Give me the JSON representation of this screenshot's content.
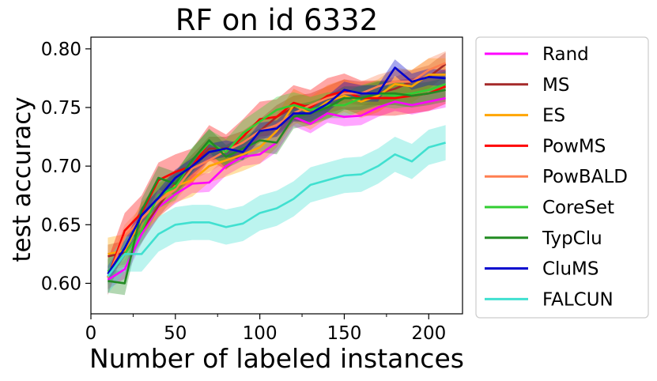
{
  "chart_data": {
    "type": "line",
    "title": "RF on id 6332",
    "xlabel": "Number of labeled instances",
    "ylabel": "test accuracy",
    "xlim": [
      0,
      220
    ],
    "ylim": [
      0.574,
      0.81
    ],
    "xticks": [
      0,
      50,
      100,
      150,
      200
    ],
    "xticks_minor": [
      25,
      75,
      125,
      175
    ],
    "yticks": [
      0.6,
      0.65,
      0.7,
      0.75,
      0.8
    ],
    "ytick_labels": [
      "0.60",
      "0.65",
      "0.70",
      "0.75",
      "0.80"
    ],
    "grid": false,
    "legend_position": "outside-right",
    "x": [
      10,
      20,
      30,
      40,
      50,
      60,
      70,
      80,
      90,
      100,
      110,
      120,
      130,
      140,
      150,
      160,
      170,
      180,
      190,
      200,
      210
    ],
    "series": [
      {
        "name": "Rand",
        "color": "#ff00ff",
        "values": [
          0.603,
          0.612,
          0.642,
          0.665,
          0.676,
          0.685,
          0.686,
          0.7,
          0.708,
          0.71,
          0.72,
          0.742,
          0.736,
          0.745,
          0.742,
          0.743,
          0.75,
          0.755,
          0.752,
          0.755,
          0.758
        ],
        "band": 0.008
      },
      {
        "name": "MS",
        "color": "#a52a2a",
        "values": [
          0.623,
          0.626,
          0.645,
          0.666,
          0.685,
          0.7,
          0.715,
          0.715,
          0.72,
          0.73,
          0.742,
          0.75,
          0.752,
          0.758,
          0.764,
          0.762,
          0.762,
          0.766,
          0.772,
          0.776,
          0.787
        ],
        "band": 0.01
      },
      {
        "name": "ES",
        "color": "#ffa500",
        "values": [
          0.625,
          0.628,
          0.655,
          0.67,
          0.683,
          0.688,
          0.7,
          0.705,
          0.71,
          0.716,
          0.73,
          0.752,
          0.745,
          0.755,
          0.76,
          0.755,
          0.76,
          0.77,
          0.768,
          0.778,
          0.778
        ],
        "band": 0.014
      },
      {
        "name": "PowMS",
        "color": "#ff0000",
        "values": [
          0.605,
          0.645,
          0.66,
          0.688,
          0.695,
          0.7,
          0.72,
          0.712,
          0.725,
          0.74,
          0.742,
          0.754,
          0.75,
          0.76,
          0.764,
          0.758,
          0.758,
          0.758,
          0.76,
          0.762,
          0.768
        ],
        "band": 0.015
      },
      {
        "name": "PowBALD",
        "color": "#ff7f50",
        "values": [
          0.605,
          0.64,
          0.655,
          0.67,
          0.68,
          0.698,
          0.705,
          0.713,
          0.72,
          0.73,
          0.735,
          0.745,
          0.752,
          0.758,
          0.762,
          0.762,
          0.768,
          0.772,
          0.772,
          0.782,
          0.788
        ],
        "band": 0.01
      },
      {
        "name": "CoreSet",
        "color": "#32cd32",
        "values": [
          0.61,
          0.625,
          0.645,
          0.675,
          0.682,
          0.705,
          0.72,
          0.712,
          0.728,
          0.738,
          0.748,
          0.752,
          0.748,
          0.752,
          0.752,
          0.758,
          0.762,
          0.76,
          0.762,
          0.765,
          0.77
        ],
        "band": 0.011
      },
      {
        "name": "TypClu",
        "color": "#228b22",
        "values": [
          0.602,
          0.6,
          0.662,
          0.69,
          0.685,
          0.705,
          0.722,
          0.708,
          0.715,
          0.722,
          0.72,
          0.742,
          0.745,
          0.75,
          0.758,
          0.758,
          0.762,
          0.762,
          0.76,
          0.762,
          0.765
        ],
        "band": 0.01
      },
      {
        "name": "CluMS",
        "color": "#0000cd",
        "values": [
          0.608,
          0.63,
          0.658,
          0.673,
          0.69,
          0.7,
          0.712,
          0.715,
          0.712,
          0.73,
          0.732,
          0.745,
          0.745,
          0.753,
          0.765,
          0.762,
          0.762,
          0.784,
          0.772,
          0.776,
          0.775
        ],
        "band": 0.007
      },
      {
        "name": "FALCUN",
        "color": "#40e0d0",
        "values": [
          0.606,
          0.625,
          0.625,
          0.642,
          0.65,
          0.652,
          0.652,
          0.648,
          0.651,
          0.66,
          0.664,
          0.672,
          0.684,
          0.688,
          0.692,
          0.693,
          0.7,
          0.71,
          0.704,
          0.716,
          0.72
        ],
        "band": 0.015
      }
    ]
  }
}
